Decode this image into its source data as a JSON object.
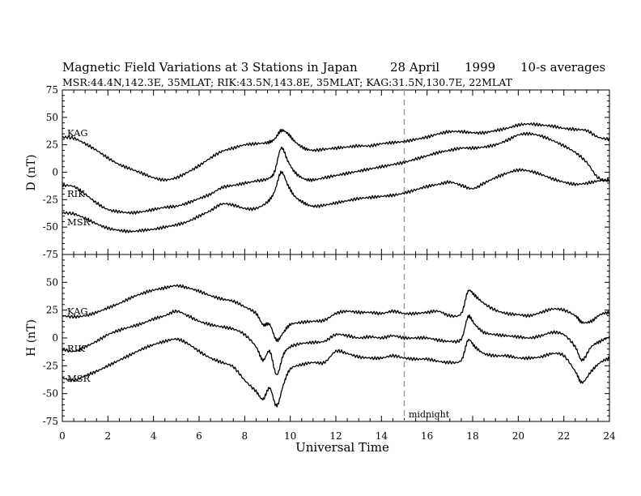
{
  "chart_data": {
    "type": "line",
    "title_parts": [
      "Magnetic Field Variations at 3 Stations in Japan",
      "28 April",
      "1999",
      "10-s averages"
    ],
    "subtitle": "MSR:44.4N,142.3E, 35MLAT;  RIK:43.5N,143.8E, 35MLAT;  KAG:31.5N,130.7E, 22MLAT",
    "xlabel": "Universal Time",
    "xlim": [
      0,
      24
    ],
    "xticks": [
      "0",
      "2",
      "4",
      "6",
      "8",
      "10",
      "12",
      "14",
      "16",
      "18",
      "20",
      "22",
      "24"
    ],
    "annotation": {
      "text": "midnight",
      "x": 15
    },
    "panels": [
      {
        "name": "D",
        "ylabel": "D (nT)",
        "ylim": [
          -75,
          75
        ],
        "yticks": [
          "75",
          "50",
          "25",
          "0",
          "-25",
          "-50",
          "-75"
        ],
        "series": [
          {
            "name": "KAG",
            "x": [
              0,
              0.5,
              1,
              1.5,
              2,
              2.5,
              3,
              3.5,
              4,
              4.5,
              5,
              5.5,
              6,
              6.5,
              7,
              7.5,
              8,
              8.5,
              9,
              9.3,
              9.6,
              9.9,
              10.2,
              10.6,
              11,
              11.5,
              12,
              12.5,
              13,
              13.5,
              14,
              14.5,
              15,
              15.5,
              16,
              16.5,
              17,
              17.5,
              18,
              18.5,
              19,
              19.5,
              20,
              20.5,
              21,
              21.5,
              22,
              22.5,
              23,
              23.5,
              24
            ],
            "values": [
              32,
              31,
              26,
              20,
              13,
              7,
              3,
              -1,
              -5,
              -7,
              -5,
              0,
              6,
              13,
              19,
              22,
              25,
              26,
              27,
              30,
              38,
              35,
              28,
              22,
              20,
              21,
              22,
              23,
              24,
              24,
              26,
              27,
              28,
              30,
              32,
              35,
              37,
              37,
              36,
              36,
              38,
              40,
              43,
              44,
              43,
              42,
              40,
              39,
              38,
              32,
              30
            ]
          },
          {
            "name": "RIK",
            "x": [
              0,
              0.5,
              1,
              1.5,
              2,
              2.5,
              3,
              3.5,
              4,
              4.5,
              5,
              5.5,
              6,
              6.5,
              7,
              7.5,
              8,
              8.5,
              9,
              9.3,
              9.6,
              9.9,
              10.2,
              10.6,
              11,
              11.5,
              12,
              12.5,
              13,
              13.5,
              14,
              14.5,
              15,
              15.5,
              16,
              16.5,
              17,
              17.5,
              18,
              18.5,
              19,
              19.5,
              20,
              20.5,
              21,
              21.5,
              22,
              22.5,
              23,
              23.5,
              24
            ],
            "values": [
              -12,
              -13,
              -20,
              -28,
              -34,
              -36,
              -37,
              -36,
              -34,
              -32,
              -31,
              -28,
              -24,
              -20,
              -14,
              -12,
              -10,
              -8,
              -6,
              0,
              22,
              10,
              0,
              -6,
              -7,
              -5,
              -3,
              -1,
              1,
              3,
              5,
              7,
              9,
              12,
              15,
              18,
              20,
              22,
              22,
              23,
              25,
              29,
              34,
              35,
              33,
              29,
              24,
              18,
              9,
              -5,
              -8
            ]
          },
          {
            "name": "MSR",
            "x": [
              0,
              0.5,
              1,
              1.5,
              2,
              2.5,
              3,
              3.5,
              4,
              4.5,
              5,
              5.5,
              6,
              6.5,
              7,
              7.5,
              8,
              8.5,
              9,
              9.3,
              9.6,
              9.9,
              10.2,
              10.6,
              11,
              11.5,
              12,
              12.5,
              13,
              13.5,
              14,
              14.5,
              15,
              15.5,
              16,
              16.5,
              17,
              17.5,
              18,
              18.5,
              19,
              19.5,
              20,
              20.5,
              21,
              21.5,
              22,
              22.5,
              23,
              23.5,
              24
            ],
            "values": [
              -37,
              -38,
              -42,
              -47,
              -51,
              -53,
              -54,
              -53,
              -52,
              -50,
              -48,
              -45,
              -40,
              -35,
              -29,
              -30,
              -33,
              -33,
              -27,
              -18,
              0,
              -12,
              -22,
              -28,
              -31,
              -30,
              -28,
              -26,
              -24,
              -23,
              -22,
              -21,
              -19,
              -16,
              -13,
              -11,
              -9,
              -12,
              -15,
              -10,
              -5,
              -1,
              2,
              1,
              -2,
              -6,
              -9,
              -11,
              -10,
              -8,
              -7
            ]
          }
        ]
      },
      {
        "name": "H",
        "ylabel": "H (nT)",
        "ylim": [
          -75,
          75
        ],
        "yticks": [
          "75",
          "50",
          "25",
          "0",
          "-25",
          "-50",
          "-75"
        ],
        "series": [
          {
            "name": "KAG",
            "x": [
              0,
              0.5,
              1,
              1.5,
              2,
              2.5,
              3,
              3.5,
              4,
              4.5,
              5,
              5.5,
              6,
              6.5,
              7,
              7.5,
              8,
              8.5,
              8.8,
              9.1,
              9.4,
              9.7,
              10,
              10.5,
              11,
              11.5,
              12,
              12.5,
              13,
              13.5,
              14,
              14.5,
              15,
              15.5,
              16,
              16.5,
              17,
              17.5,
              17.8,
              18.1,
              18.5,
              19,
              19.5,
              20,
              20.5,
              21,
              21.5,
              22,
              22.5,
              22.8,
              23.2,
              23.6,
              24
            ],
            "values": [
              20,
              19,
              20,
              23,
              27,
              31,
              36,
              40,
              43,
              45,
              47,
              45,
              42,
              38,
              35,
              33,
              28,
              22,
              12,
              12,
              -2,
              5,
              12,
              14,
              15,
              16,
              22,
              24,
              23,
              23,
              22,
              24,
              22,
              22,
              23,
              24,
              20,
              22,
              42,
              38,
              31,
              25,
              22,
              21,
              20,
              23,
              26,
              25,
              20,
              14,
              15,
              21,
              23
            ]
          },
          {
            "name": "RIK",
            "x": [
              0,
              0.5,
              1,
              1.5,
              2,
              2.5,
              3,
              3.5,
              4,
              4.5,
              5,
              5.5,
              6,
              6.5,
              7,
              7.5,
              8,
              8.5,
              8.8,
              9.1,
              9.4,
              9.7,
              10,
              10.5,
              11,
              11.5,
              12,
              12.5,
              13,
              13.5,
              14,
              14.5,
              15,
              15.5,
              16,
              16.5,
              17,
              17.5,
              17.8,
              18.1,
              18.5,
              19,
              19.5,
              20,
              20.5,
              21,
              21.5,
              22,
              22.5,
              22.8,
              23.2,
              23.6,
              24
            ],
            "values": [
              -10,
              -12,
              -8,
              -3,
              3,
              7,
              10,
              13,
              17,
              20,
              24,
              20,
              15,
              12,
              10,
              8,
              3,
              -8,
              -20,
              -12,
              -33,
              -15,
              -8,
              -5,
              -4,
              -3,
              3,
              2,
              0,
              1,
              0,
              2,
              0,
              0,
              0,
              -2,
              -3,
              -1,
              19,
              12,
              5,
              3,
              2,
              1,
              0,
              2,
              5,
              3,
              -8,
              -20,
              -8,
              -3,
              1
            ]
          },
          {
            "name": "MSR",
            "x": [
              0,
              0.5,
              1,
              1.5,
              2,
              2.5,
              3,
              3.5,
              4,
              4.5,
              5,
              5.5,
              6,
              6.5,
              7,
              7.5,
              8,
              8.5,
              8.8,
              9.1,
              9.4,
              9.7,
              10,
              10.5,
              11,
              11.5,
              12,
              12.5,
              13,
              13.5,
              14,
              14.5,
              15,
              15.5,
              16,
              16.5,
              17,
              17.5,
              17.8,
              18.1,
              18.5,
              19,
              19.5,
              20,
              20.5,
              21,
              21.5,
              22,
              22.5,
              22.8,
              23.2,
              23.6,
              24
            ],
            "values": [
              -36,
              -38,
              -34,
              -30,
              -25,
              -20,
              -15,
              -10,
              -6,
              -3,
              -1,
              -5,
              -12,
              -18,
              -22,
              -26,
              -38,
              -48,
              -55,
              -45,
              -61,
              -42,
              -28,
              -24,
              -22,
              -22,
              -12,
              -14,
              -17,
              -18,
              -18,
              -16,
              -18,
              -19,
              -19,
              -21,
              -22,
              -20,
              -2,
              -8,
              -14,
              -16,
              -16,
              -18,
              -18,
              -17,
              -14,
              -16,
              -30,
              -40,
              -30,
              -22,
              -18
            ]
          }
        ]
      }
    ]
  }
}
